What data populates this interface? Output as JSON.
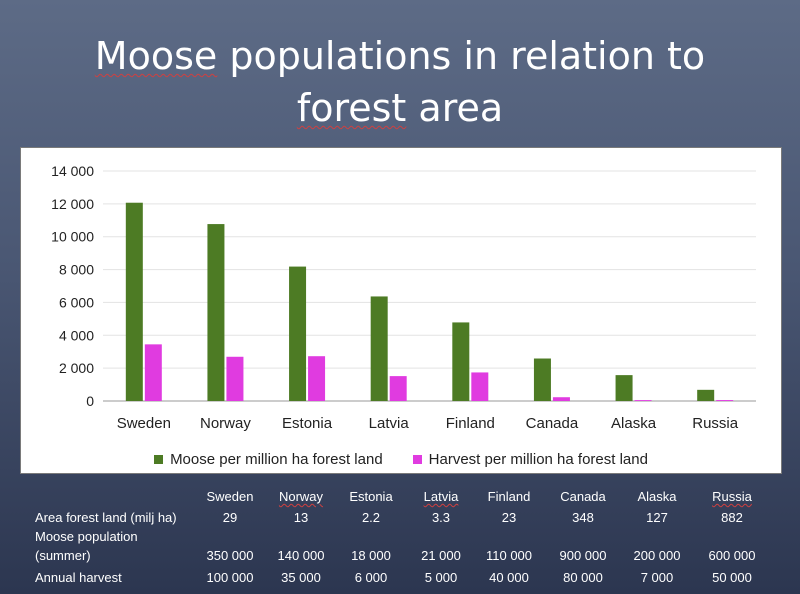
{
  "slide": {
    "title_line1_word1": "Moose",
    "title_line1_rest": " populations in relation to",
    "title_line2_word1": "forest",
    "title_line2_rest": " area"
  },
  "chart_data": {
    "type": "bar",
    "categories": [
      "Sweden",
      "Norway",
      "Estonia",
      "Latvia",
      "Finland",
      "Canada",
      "Alaska",
      "Russia"
    ],
    "series": [
      {
        "name": "Moose per million ha forest land",
        "color": "#4d7b24",
        "values": [
          12069,
          10769,
          8182,
          6364,
          4783,
          2586,
          1575,
          680
        ]
      },
      {
        "name": "Harvest per million ha forest land",
        "color": "#e03be0",
        "values": [
          3448,
          2692,
          2727,
          1515,
          1739,
          230,
          55,
          57
        ]
      }
    ],
    "ylim": [
      0,
      14000
    ],
    "yticks": [
      "0",
      "2 000",
      "4 000",
      "6 000",
      "8 000",
      "10 000",
      "12 000",
      "14 000"
    ],
    "grid": true,
    "legend": "bottom"
  },
  "table": {
    "columns": [
      "Sweden",
      "Norway",
      "Estonia",
      "Latvia",
      "Finland",
      "Canada",
      "Alaska",
      "Russia"
    ],
    "rows": [
      {
        "label": "Area forest land (milj ha)",
        "values": [
          "29",
          "13",
          "2.2",
          "3.3",
          "23",
          "348",
          "127",
          "882"
        ]
      },
      {
        "label_line1": "Moose population",
        "label_line2": "(summer)",
        "values": [
          "350 000",
          "140 000",
          "18 000",
          "21 000",
          "110 000",
          "900 000",
          "200 000",
          "600 000"
        ]
      },
      {
        "label": "Annual harvest",
        "values": [
          "100 000",
          "35 000",
          "6 000",
          "5 000",
          "40 000",
          "80 000",
          "7 000",
          "50 000"
        ]
      }
    ]
  }
}
